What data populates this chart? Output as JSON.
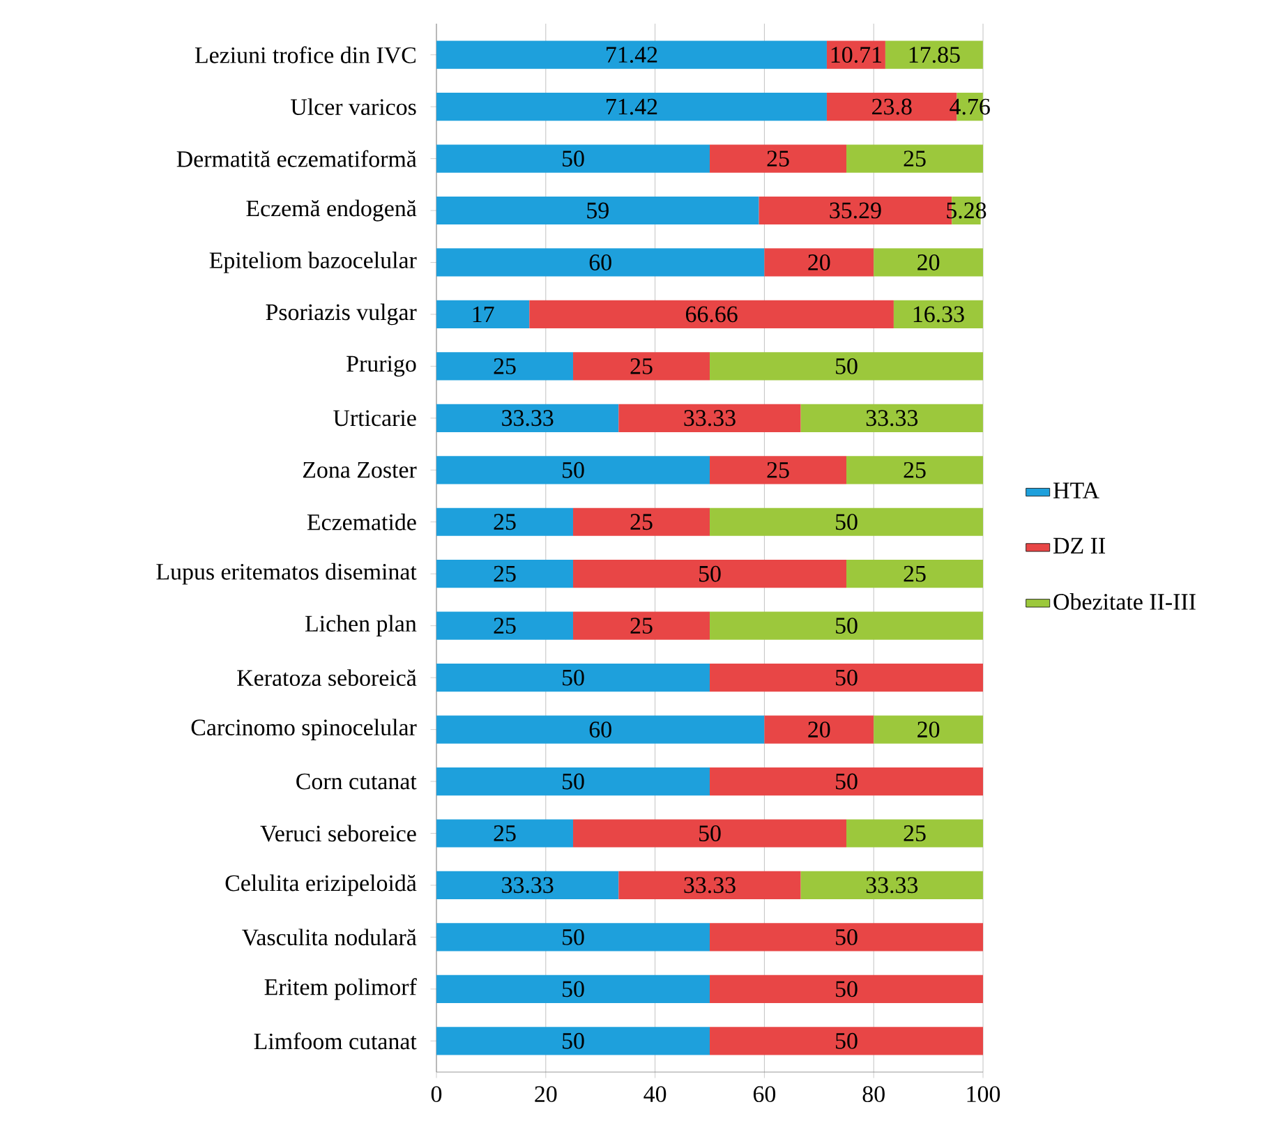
{
  "chart_data": {
    "type": "bar",
    "orientation": "horizontal",
    "stacked": true,
    "data_labels": true,
    "grid": "x",
    "legend": "right",
    "categories": [
      "Leziuni trofice din IVC",
      "Ulcer varicos",
      "Dermatită eczematiformă",
      "Eczemă endogenă",
      "Epiteliom bazocelular",
      "Psoriazis vulgar",
      "Prurigo",
      "Urticarie",
      "Zona Zoster",
      "Eczematide",
      "Lupus eritematos diseminat",
      "Lichen plan",
      "Keratoza seboreică",
      "Carcinomo spinocelular",
      "Corn cutanat",
      "Veruci seboreice",
      "Celulita erizipeloidă",
      "Vasculita nodulară",
      "Eritem polimorf",
      "Limfoom cutanat"
    ],
    "series": [
      {
        "name": "HTA",
        "color": "#1ea0dc",
        "values": [
          71.42,
          71.42,
          50,
          59,
          60,
          17,
          25,
          33.33,
          50,
          25,
          25,
          25,
          50,
          60,
          50,
          25,
          33.33,
          50,
          50,
          50
        ]
      },
      {
        "name": "DZ II",
        "color": "#e84646",
        "values": [
          10.71,
          23.8,
          25,
          35.29,
          20,
          66.66,
          25,
          33.33,
          25,
          25,
          50,
          25,
          50,
          20,
          50,
          50,
          33.33,
          50,
          50,
          50
        ]
      },
      {
        "name": "Obezitate II-III",
        "color": "#9cc83c",
        "values": [
          17.85,
          4.76,
          25,
          5.28,
          20,
          16.33,
          50,
          33.33,
          25,
          50,
          25,
          50,
          null,
          20,
          null,
          25,
          33.33,
          null,
          null,
          null
        ]
      }
    ],
    "xlim": [
      0,
      100
    ],
    "xticks": [
      0,
      20,
      40,
      60,
      80,
      100
    ]
  }
}
